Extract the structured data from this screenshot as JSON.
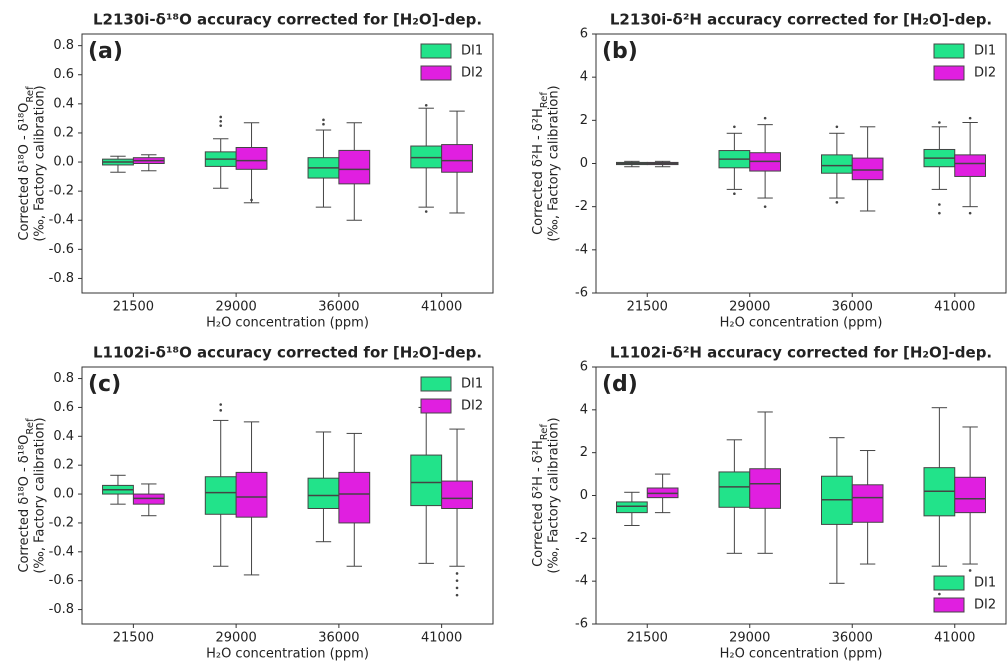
{
  "chart_data": [
    {
      "type": "box",
      "title": "L2130i-δ¹⁸O accuracy corrected for [H₂O]-dep.",
      "panel_label": "(a)",
      "xlabel": "H₂O concentration (ppm)",
      "ylabel": {
        "text": "Corrected δ¹⁸O - δ¹⁸O",
        "sub": "Ref",
        "line2": "(‰, Factory calibration)"
      },
      "categories": [
        "21500",
        "29000",
        "36000",
        "41000"
      ],
      "ylim": [
        -0.9,
        0.88
      ],
      "yticks": [
        -0.8,
        -0.6,
        -0.4,
        -0.2,
        {
          "value": 0,
          "label": "0.0"
        },
        0.2,
        0.4,
        0.6,
        0.8
      ],
      "legend": "upper right",
      "series": [
        {
          "name": "DI1",
          "color": "#22e38a",
          "boxes": [
            {
              "whislo": -0.07,
              "q1": -0.02,
              "med": 0,
              "q3": 0.02,
              "whishi": 0.04
            },
            {
              "whislo": -0.18,
              "q1": -0.03,
              "med": 0.02,
              "q3": 0.07,
              "whishi": 0.16,
              "fliers": [
                0.25,
                0.28,
                0.31
              ]
            },
            {
              "whislo": -0.31,
              "q1": -0.11,
              "med": -0.04,
              "q3": 0.03,
              "whishi": 0.22,
              "fliers": [
                0.26,
                0.29
              ]
            },
            {
              "whislo": -0.31,
              "q1": -0.04,
              "med": 0.03,
              "q3": 0.11,
              "whishi": 0.37,
              "fliers": [
                -0.34,
                0.39
              ]
            }
          ]
        },
        {
          "name": "DI2",
          "color": "#e01fe0",
          "boxes": [
            {
              "whislo": -0.06,
              "q1": -0.01,
              "med": 0.01,
              "q3": 0.03,
              "whishi": 0.05
            },
            {
              "whislo": -0.28,
              "q1": -0.05,
              "med": 0.01,
              "q3": 0.1,
              "whishi": 0.27,
              "fliers": [
                -0.26
              ]
            },
            {
              "whislo": -0.4,
              "q1": -0.15,
              "med": -0.05,
              "q3": 0.08,
              "whishi": 0.27
            },
            {
              "whislo": -0.35,
              "q1": -0.07,
              "med": 0.01,
              "q3": 0.12,
              "whishi": 0.35
            }
          ]
        }
      ]
    },
    {
      "type": "box",
      "title": "L2130i-δ²H accuracy corrected for [H₂O]-dep.",
      "panel_label": "(b)",
      "xlabel": "H₂O concentration (ppm)",
      "ylabel": {
        "text": "Corrected δ²H - δ²H",
        "sub": "Ref",
        "line2": "(‰, Factory calibration)"
      },
      "categories": [
        "21500",
        "29000",
        "36000",
        "41000"
      ],
      "ylim": [
        -6,
        6
      ],
      "yticks": [
        -6,
        -4,
        -2,
        0,
        2,
        4,
        6
      ],
      "legend": "upper right",
      "series": [
        {
          "name": "DI1",
          "color": "#22e38a",
          "boxes": [
            {
              "whislo": -0.15,
              "q1": -0.05,
              "med": 0,
              "q3": 0.05,
              "whishi": 0.1
            },
            {
              "whislo": -1.2,
              "q1": -0.2,
              "med": 0.2,
              "q3": 0.6,
              "whishi": 1.4,
              "fliers": [
                -1.4,
                1.7
              ]
            },
            {
              "whislo": -1.6,
              "q1": -0.45,
              "med": -0.1,
              "q3": 0.4,
              "whishi": 1.4,
              "fliers": [
                -1.8,
                1.7
              ]
            },
            {
              "whislo": -1.2,
              "q1": -0.15,
              "med": 0.25,
              "q3": 0.65,
              "whishi": 1.7,
              "fliers": [
                -2.3,
                -1.9,
                1.9
              ]
            }
          ]
        },
        {
          "name": "DI2",
          "color": "#e01fe0",
          "boxes": [
            {
              "whislo": -0.15,
              "q1": -0.05,
              "med": 0,
              "q3": 0.05,
              "whishi": 0.1
            },
            {
              "whislo": -1.6,
              "q1": -0.35,
              "med": 0.1,
              "q3": 0.5,
              "whishi": 1.8,
              "fliers": [
                -2,
                2.1
              ]
            },
            {
              "whislo": -2.2,
              "q1": -0.75,
              "med": -0.3,
              "q3": 0.25,
              "whishi": 1.7
            },
            {
              "whislo": -2,
              "q1": -0.6,
              "med": 0,
              "q3": 0.4,
              "whishi": 1.9,
              "fliers": [
                -2.3,
                2.1
              ]
            }
          ]
        }
      ]
    },
    {
      "type": "box",
      "title": "L1102i-δ¹⁸O accuracy corrected for [H₂O]-dep.",
      "panel_label": "(c)",
      "xlabel": "H₂O concentration (ppm)",
      "ylabel": {
        "text": "Corrected δ¹⁸O - δ¹⁸O",
        "sub": "Ref",
        "line2": "(‰, Factory calibration)"
      },
      "categories": [
        "21500",
        "29000",
        "36000",
        "41000"
      ],
      "ylim": [
        -0.9,
        0.88
      ],
      "yticks": [
        -0.8,
        -0.6,
        -0.4,
        -0.2,
        {
          "value": 0,
          "label": "0.0"
        },
        0.2,
        0.4,
        0.6,
        0.8
      ],
      "legend": "upper right",
      "series": [
        {
          "name": "DI1",
          "color": "#22e38a",
          "boxes": [
            {
              "whislo": -0.07,
              "q1": 0,
              "med": 0.03,
              "q3": 0.06,
              "whishi": 0.13
            },
            {
              "whislo": -0.5,
              "q1": -0.14,
              "med": 0.01,
              "q3": 0.12,
              "whishi": 0.51,
              "fliers": [
                0.58,
                0.62
              ]
            },
            {
              "whislo": -0.33,
              "q1": -0.1,
              "med": -0.01,
              "q3": 0.11,
              "whishi": 0.43
            },
            {
              "whislo": -0.48,
              "q1": -0.08,
              "med": 0.08,
              "q3": 0.27,
              "whishi": 0.6
            }
          ]
        },
        {
          "name": "DI2",
          "color": "#e01fe0",
          "boxes": [
            {
              "whislo": -0.15,
              "q1": -0.07,
              "med": -0.03,
              "q3": 0,
              "whishi": 0.07
            },
            {
              "whislo": -0.56,
              "q1": -0.16,
              "med": -0.02,
              "q3": 0.15,
              "whishi": 0.5
            },
            {
              "whislo": -0.5,
              "q1": -0.2,
              "med": 0,
              "q3": 0.15,
              "whishi": 0.42
            },
            {
              "whislo": -0.5,
              "q1": -0.1,
              "med": -0.03,
              "q3": 0.09,
              "whishi": 0.45,
              "fliers": [
                -0.55,
                -0.6,
                -0.65,
                -0.7
              ]
            }
          ]
        }
      ]
    },
    {
      "type": "box",
      "title": "L1102i-δ²H accuracy corrected for [H₂O]-dep.",
      "panel_label": "(d)",
      "xlabel": "H₂O concentration (ppm)",
      "ylabel": {
        "text": "Corrected δ²H - δ²H",
        "sub": "Ref",
        "line2": "(‰, Factory calibration)"
      },
      "categories": [
        "21500",
        "29000",
        "36000",
        "41000"
      ],
      "ylim": [
        -6,
        6
      ],
      "yticks": [
        -6,
        -4,
        -2,
        0,
        2,
        4,
        6
      ],
      "legend": "lower right",
      "series": [
        {
          "name": "DI1",
          "color": "#22e38a",
          "boxes": [
            {
              "whislo": -1.4,
              "q1": -0.8,
              "med": -0.5,
              "q3": -0.3,
              "whishi": 0.15
            },
            {
              "whislo": -2.7,
              "q1": -0.55,
              "med": 0.4,
              "q3": 1.1,
              "whishi": 2.6
            },
            {
              "whislo": -4.1,
              "q1": -1.35,
              "med": -0.2,
              "q3": 0.9,
              "whishi": 2.7
            },
            {
              "whislo": -3.3,
              "q1": -0.95,
              "med": 0.2,
              "q3": 1.3,
              "whishi": 4.1,
              "fliers": [
                -4.6
              ]
            }
          ]
        },
        {
          "name": "DI2",
          "color": "#e01fe0",
          "boxes": [
            {
              "whislo": -0.8,
              "q1": -0.1,
              "med": 0.1,
              "q3": 0.35,
              "whishi": 1
            },
            {
              "whislo": -2.7,
              "q1": -0.6,
              "med": 0.55,
              "q3": 1.25,
              "whishi": 3.9
            },
            {
              "whislo": -3.2,
              "q1": -1.25,
              "med": -0.1,
              "q3": 0.5,
              "whishi": 2.1
            },
            {
              "whislo": -3.2,
              "q1": -0.8,
              "med": -0.15,
              "q3": 0.85,
              "whishi": 3.2,
              "fliers": [
                -3.5
              ]
            }
          ]
        }
      ]
    }
  ]
}
